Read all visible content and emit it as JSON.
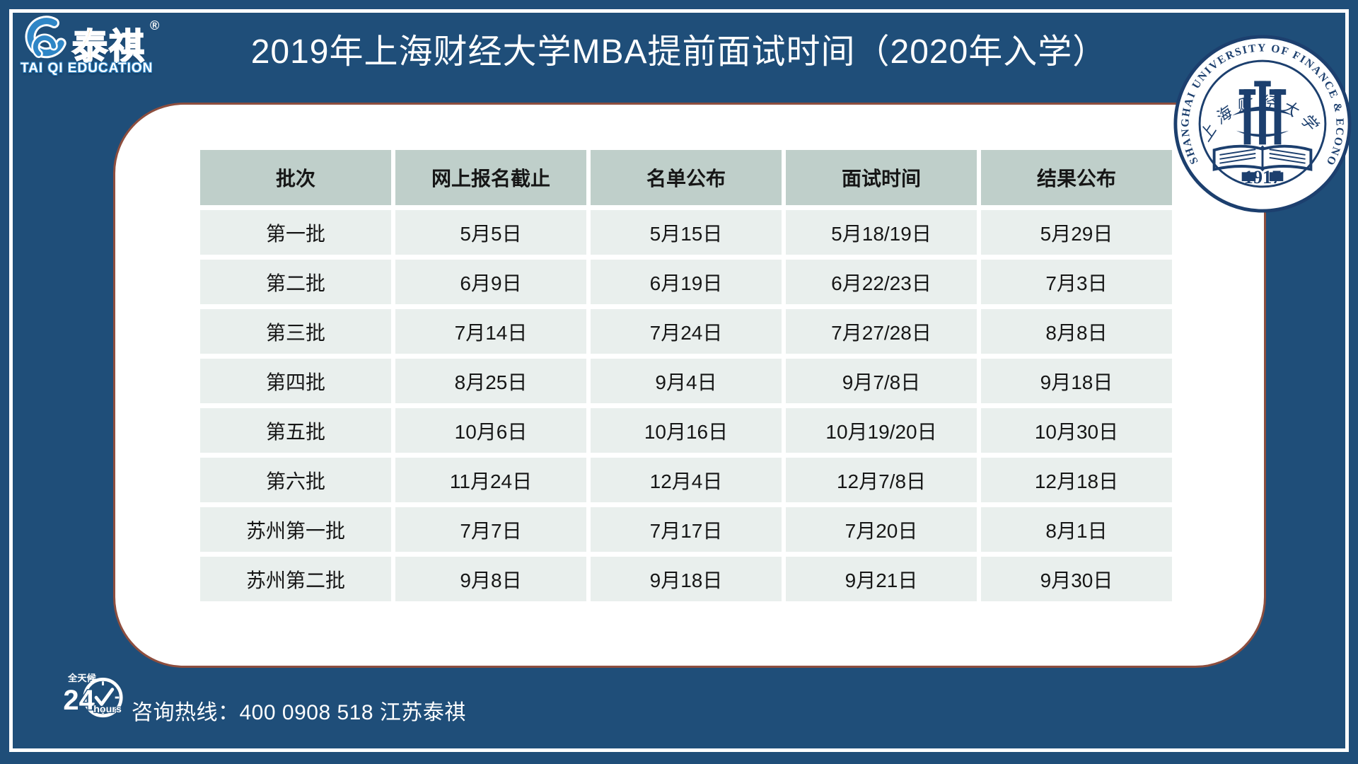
{
  "page": {
    "title": "2019年上海财经大学MBA提前面试时间（2020年入学）"
  },
  "logo": {
    "icon": "taiqi-swirl-icon",
    "brand_cn": "泰祺",
    "reg_mark": "®",
    "brand_en": "TAI QI EDUCATION"
  },
  "seal": {
    "ring_text": "SHANGHAI UNIVERSITY OF FINANCE & ECONOMICS",
    "cn_text": "上海财经大学",
    "year": "1917"
  },
  "table": {
    "headers": [
      "批次",
      "网上报名截止",
      "名单公布",
      "面试时间",
      "结果公布"
    ],
    "rows": [
      [
        "第一批",
        "5月5日",
        "5月15日",
        "5月18/19日",
        "5月29日"
      ],
      [
        "第二批",
        "6月9日",
        "6月19日",
        "6月22/23日",
        "7月3日"
      ],
      [
        "第三批",
        "7月14日",
        "7月24日",
        "7月27/28日",
        "8月8日"
      ],
      [
        "第四批",
        "8月25日",
        "9月4日",
        "9月7/8日",
        "9月18日"
      ],
      [
        "第五批",
        "10月6日",
        "10月16日",
        "10月19/20日",
        "10月30日"
      ],
      [
        "第六批",
        "11月24日",
        "12月4日",
        "12月7/8日",
        "12月18日"
      ],
      [
        "苏州第一批",
        "7月7日",
        "7月17日",
        "7月20日",
        "8月1日"
      ],
      [
        "苏州第二批",
        "9月8日",
        "9月18日",
        "9月21日",
        "9月30日"
      ]
    ]
  },
  "footer": {
    "badge": {
      "top": "全天候",
      "number": "24",
      "unit": "hours"
    },
    "hotline": "咨询热线：400 0908 518 江苏泰祺"
  },
  "colors": {
    "background_navy": "#1F4E79",
    "frame_white": "#FFFFFF",
    "card_border_brown": "#8E4E3E",
    "header_cell": "#BFCFCA",
    "data_cell": "#E9EFED",
    "table_text": "#161616",
    "seal_navy": "#1C3F6E",
    "logo_blue": "#2F86C6",
    "logo_orange": "#F6A81C"
  }
}
